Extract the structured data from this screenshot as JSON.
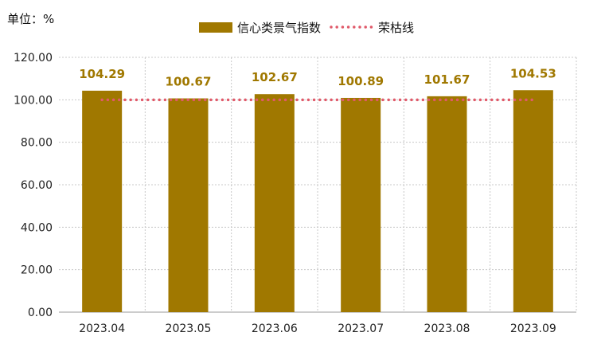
{
  "unit": "单位：%",
  "chart_data": {
    "type": "bar",
    "categories": [
      "2023.04",
      "2023.05",
      "2023.06",
      "2023.07",
      "2023.08",
      "2023.09"
    ],
    "series": [
      {
        "name": "信心类景气指数",
        "kind": "bar",
        "values": [
          104.29,
          100.67,
          102.67,
          100.89,
          101.67,
          104.53
        ],
        "data_labels": [
          "104.29",
          "100.67",
          "102.67",
          "100.89",
          "101.67",
          "104.53"
        ]
      },
      {
        "name": "荣枯线",
        "kind": "line-dotted",
        "value": 100
      }
    ],
    "ylim": [
      0,
      120
    ],
    "yticks": [
      0,
      20,
      40,
      60,
      80,
      100,
      120
    ],
    "ytick_labels": [
      "0.00",
      "20.00",
      "40.00",
      "60.00",
      "80.00",
      "100.00",
      "120.00"
    ],
    "grid": true,
    "legend_position": "top-center",
    "colors": {
      "bar": "#A07800",
      "line": "#E05A6A",
      "label": "#A07800",
      "grid": "#C8C8C8"
    }
  }
}
